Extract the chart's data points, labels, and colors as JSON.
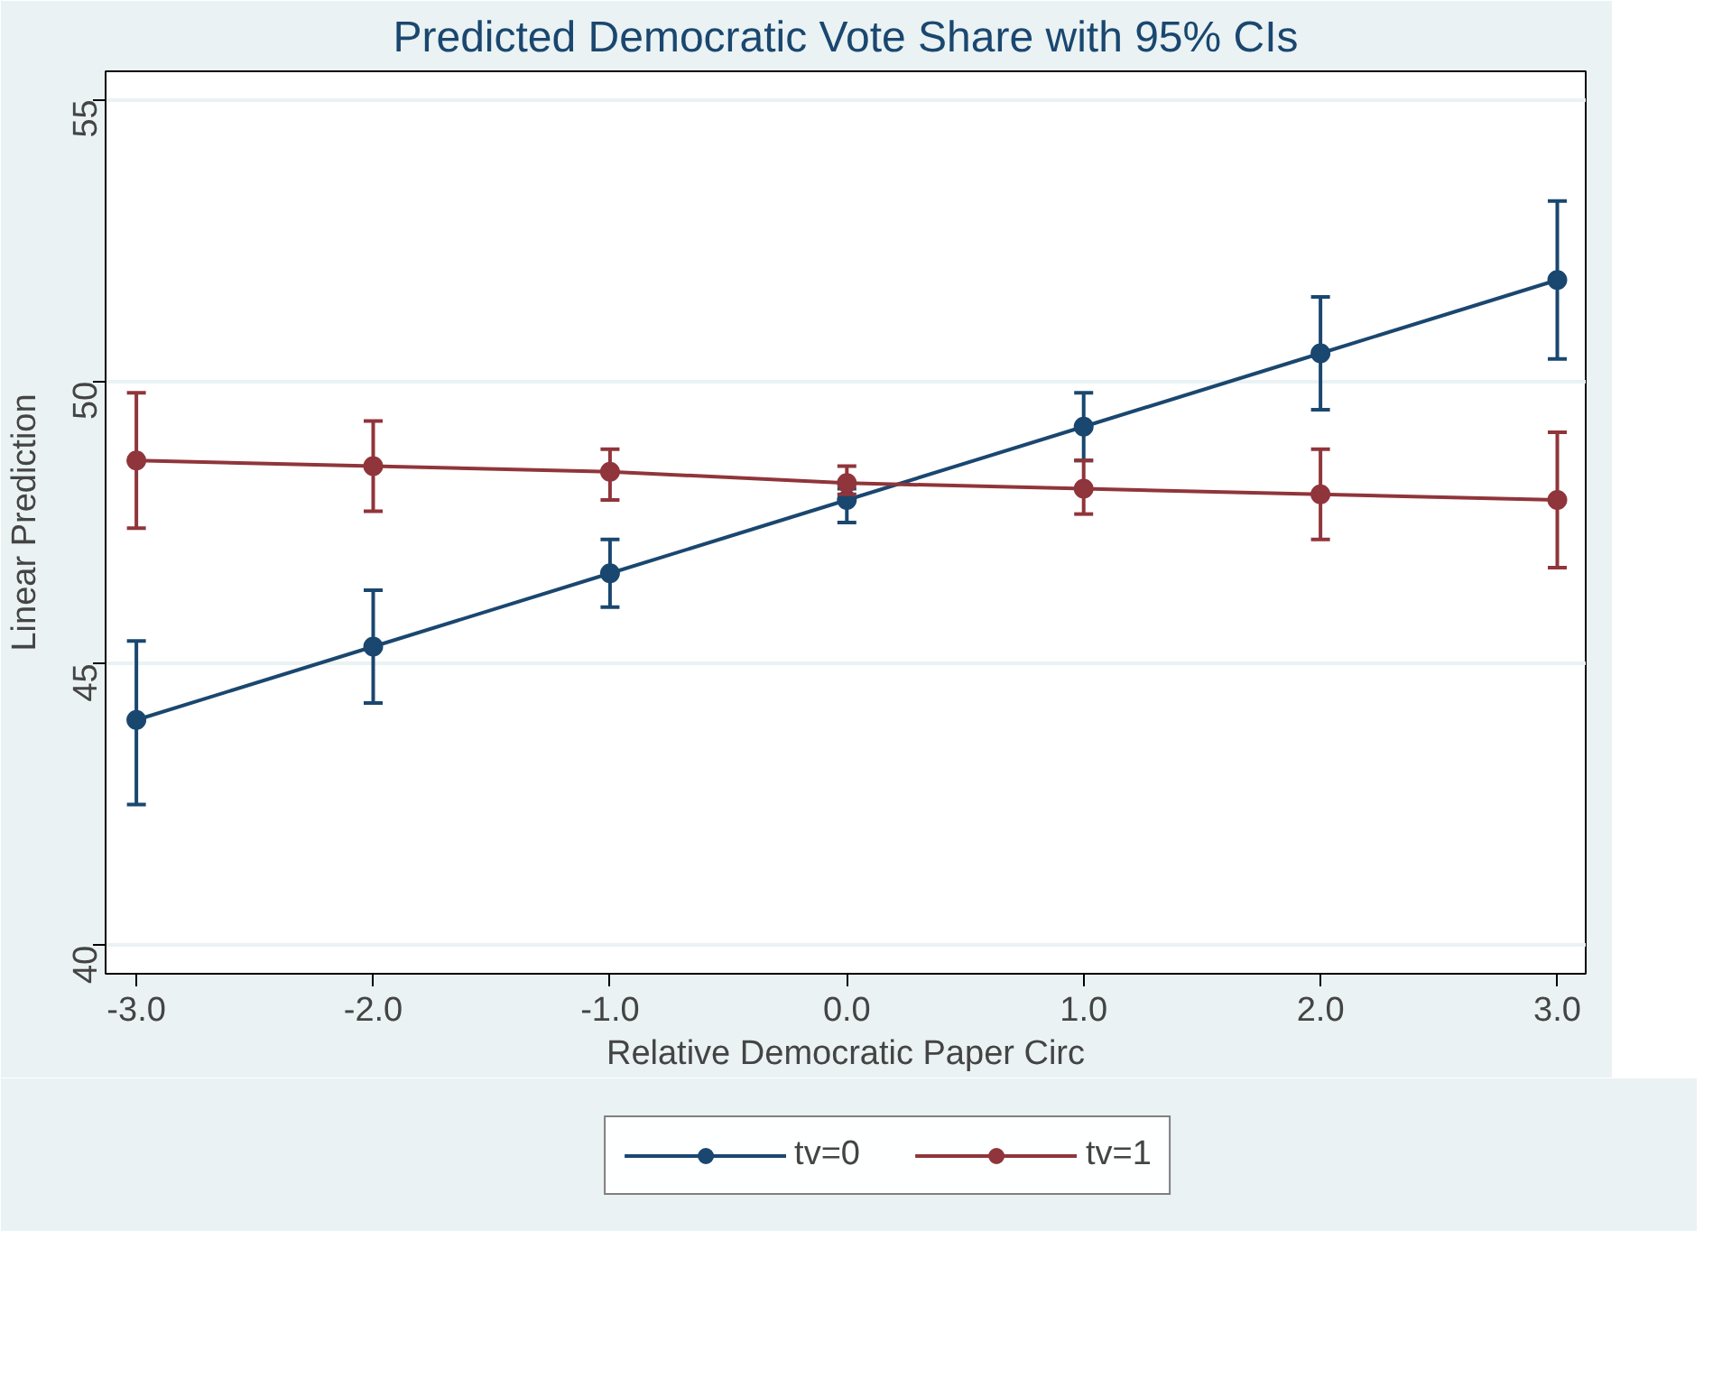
{
  "chart_data": {
    "type": "line",
    "title": "Predicted Democratic Vote Share with 95% CIs",
    "xlabel": "Relative Democratic Paper Circ",
    "ylabel": "Linear Prediction",
    "x": [
      -3,
      -2,
      -1,
      0,
      1,
      2,
      3
    ],
    "series": [
      {
        "name": "tv=0",
        "color": "#1a476f",
        "values": [
          44.0,
          45.3,
          46.6,
          47.9,
          49.2,
          50.5,
          51.8
        ],
        "errors": [
          [
            42.5,
            45.4
          ],
          [
            44.3,
            46.3
          ],
          [
            46.0,
            47.2
          ],
          [
            47.5,
            48.1
          ],
          [
            48.6,
            49.8
          ],
          [
            49.5,
            51.5
          ],
          [
            50.4,
            53.2
          ]
        ]
      },
      {
        "name": "tv=1",
        "color": "#90353b",
        "values": [
          48.6,
          48.5,
          48.4,
          48.2,
          48.1,
          48.0,
          47.9
        ],
        "errors": [
          [
            47.4,
            49.8
          ],
          [
            47.7,
            49.3
          ],
          [
            47.9,
            48.8
          ],
          [
            48.0,
            48.5
          ],
          [
            47.65,
            48.6
          ],
          [
            47.2,
            48.8
          ],
          [
            46.7,
            49.1
          ]
        ]
      }
    ],
    "xlim": [
      -3.13,
      3.12
    ],
    "ylim": [
      39.5,
      55.5
    ],
    "xticks": [
      {
        "value": -3,
        "label": "-3.0"
      },
      {
        "value": -2,
        "label": "-2.0"
      },
      {
        "value": -1,
        "label": "-1.0"
      },
      {
        "value": 0,
        "label": "0.0"
      },
      {
        "value": 1,
        "label": "1.0"
      },
      {
        "value": 2,
        "label": "2.0"
      },
      {
        "value": 3,
        "label": "3.0"
      }
    ],
    "yticks": [
      40,
      45,
      50,
      55
    ],
    "grid": "y",
    "legend": "bottom",
    "marker": "circle",
    "line_style": "solid"
  }
}
